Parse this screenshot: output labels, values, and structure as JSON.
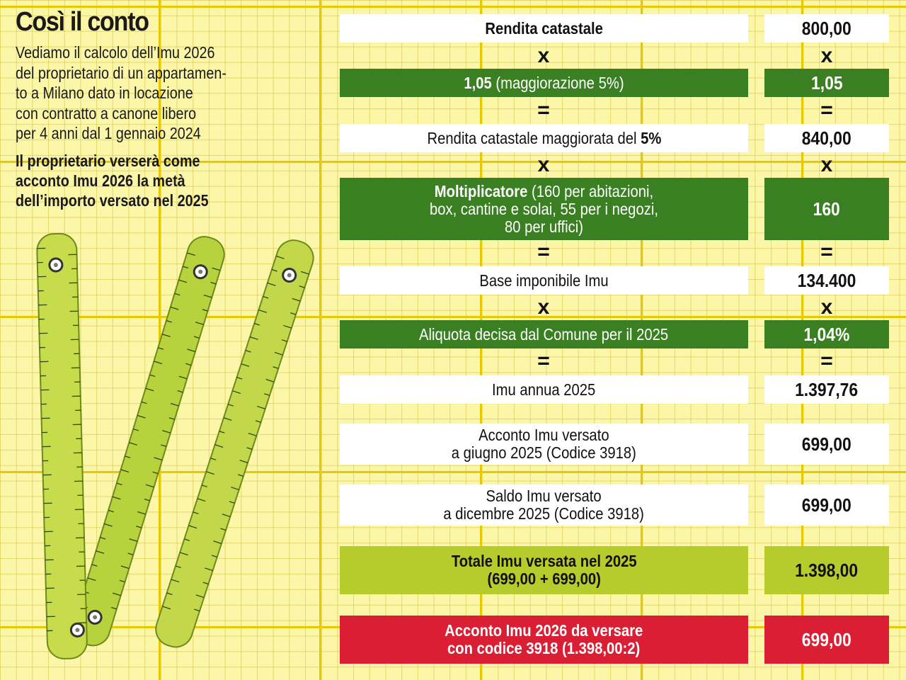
{
  "header": {
    "title": "Così il conto",
    "description": "Vediamo il calcolo dell’Imu 2026\ndel proprietario di un appartamen-\nto a Milano dato in locazione\ncon contratto a canone libero\nper 4 anni dal 1 gennaio 2024",
    "note": "Il proprietario verserà come\nacconto Imu 2026 la metà\ndell’importo versato nel 2025"
  },
  "rows": [
    {
      "label": "Rendita catastale",
      "value": "800,00"
    },
    {
      "label_bold": "1,05",
      "label_rest": " (maggiorazione 5%)",
      "value": "1,05"
    },
    {
      "label_rest": "Rendita catastale maggiorata del ",
      "label_bold": "5%",
      "value": "840,00"
    },
    {
      "label_bold": "Moltiplicatore",
      "label_rest": " (160 per abitazioni,\nbox, cantine e solai, 55 per i negozi,\n80 per uffici)",
      "value": "160"
    },
    {
      "label": "Base imponibile Imu",
      "value": "134.400"
    },
    {
      "label": "Aliquota decisa dal Comune  per il 2025",
      "value": "1,04%"
    },
    {
      "label": "Imu annua 2025",
      "value": "1.397,76"
    },
    {
      "label": "Acconto Imu versato\na giugno 2025 (Codice 3918)",
      "value": "699,00"
    },
    {
      "label": "Saldo Imu versato\na dicembre 2025 (Codice 3918)",
      "value": "699,00"
    },
    {
      "label": "Totale Imu versata nel 2025\n(699,00 + 699,00)",
      "value": "1.398,00"
    },
    {
      "label": "Acconto Imu 2026 da versare\ncon codice 3918 (1.398,00:2)",
      "value": "699,00"
    }
  ],
  "operators": {
    "times": "x",
    "equals": "="
  },
  "colors": {
    "dark_green": "#3b7f23",
    "lime": "#b6cc2c",
    "red": "#da1f34",
    "background": "#fbf6a8"
  }
}
